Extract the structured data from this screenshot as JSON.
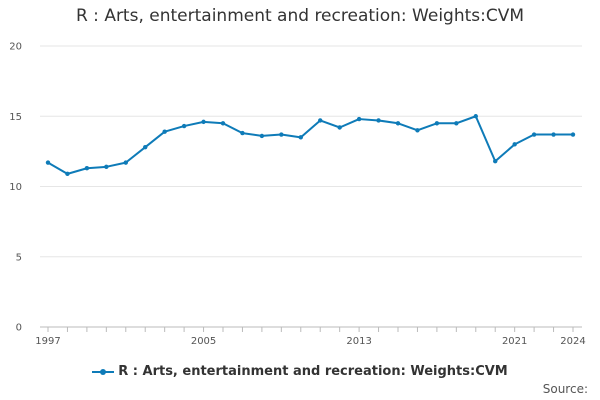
{
  "chart_data": {
    "type": "line",
    "title": "R : Arts, entertainment and recreation: Weights:CVM",
    "x": [
      1997,
      1998,
      1999,
      2000,
      2001,
      2002,
      2003,
      2004,
      2005,
      2006,
      2007,
      2008,
      2009,
      2010,
      2011,
      2012,
      2013,
      2014,
      2015,
      2016,
      2017,
      2018,
      2019,
      2020,
      2021,
      2022,
      2023,
      2024
    ],
    "x_tick_labels": [
      "1997",
      "2005",
      "2013",
      "2021",
      "2024"
    ],
    "y_tick_labels": [
      "0",
      "5",
      "10",
      "15",
      "20"
    ],
    "ylim": [
      0,
      20
    ],
    "xlim": [
      1997,
      2024
    ],
    "grid": true,
    "legend_position": "bottom",
    "series": [
      {
        "name": "R : Arts, entertainment and recreation: Weights:CVM",
        "color": "#0e7bb8",
        "values": [
          11.7,
          10.9,
          11.3,
          11.4,
          11.7,
          12.8,
          13.9,
          14.3,
          14.6,
          14.5,
          13.8,
          13.6,
          13.7,
          13.5,
          14.7,
          14.2,
          14.8,
          14.7,
          14.5,
          14.0,
          14.5,
          14.5,
          15.0,
          11.8,
          13.0,
          13.7,
          13.7,
          13.7
        ]
      }
    ]
  },
  "source_label": "Source:"
}
